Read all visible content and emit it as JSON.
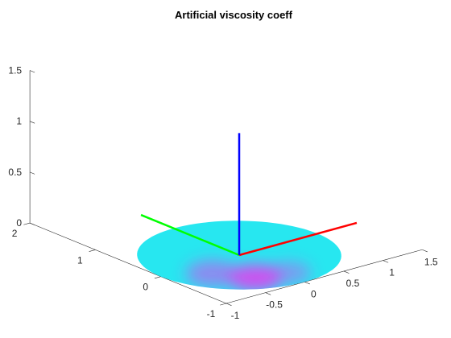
{
  "chart_data": {
    "type": "surface3d",
    "title": "Artificial viscosity coeff",
    "xlabel": "",
    "ylabel": "",
    "zlabel": "",
    "xlim": [
      -1,
      1.5
    ],
    "ylim": [
      -1,
      2
    ],
    "zlim": [
      0,
      1.5
    ],
    "x_ticks": [
      -1,
      -0.5,
      0,
      0.5,
      1,
      1.5
    ],
    "y_ticks": [
      -1,
      0,
      1,
      2
    ],
    "z_ticks": [
      0,
      0.5,
      1,
      1.5
    ],
    "grid": false,
    "legend": "none",
    "surface": {
      "shape": "unit disk",
      "center": [
        0,
        0
      ],
      "radius": 1,
      "z": 0,
      "base_color": "#27e7f0",
      "high_color": "#e040f0",
      "hotspots": [
        {
          "x": -0.3,
          "y": -0.6,
          "intensity": 0.9,
          "spread": 0.3
        },
        {
          "x": -0.55,
          "y": -0.25,
          "intensity": 0.55,
          "spread": 0.3
        },
        {
          "x": 0.05,
          "y": -0.7,
          "intensity": 0.45,
          "spread": 0.25
        }
      ]
    },
    "axes_lines": [
      {
        "name": "x-axis",
        "color": "#ff0000",
        "from": [
          0,
          0,
          0
        ],
        "to": [
          1.5,
          0,
          0
        ]
      },
      {
        "name": "y-axis",
        "color": "#00ff00",
        "from": [
          0,
          0,
          0
        ],
        "to": [
          0,
          1.5,
          0
        ]
      },
      {
        "name": "z-axis",
        "color": "#0000ff",
        "from": [
          0,
          0,
          0
        ],
        "to": [
          0,
          0,
          1.2
        ]
      }
    ]
  }
}
